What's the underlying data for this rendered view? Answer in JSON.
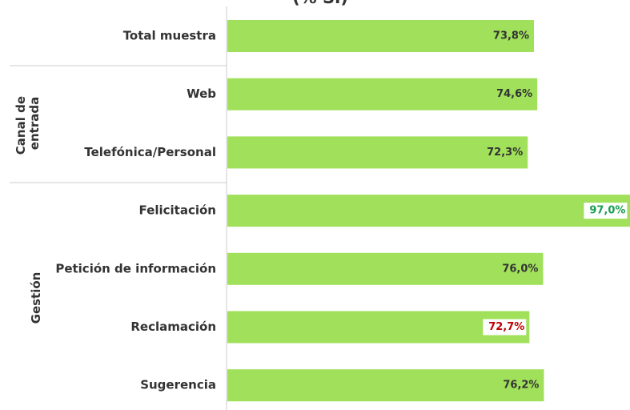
{
  "chart_data": {
    "type": "bar",
    "orientation": "horizontal",
    "title": "(% Sí)",
    "categories": [
      "Total muestra",
      "Web",
      "Telefónica/Personal",
      "Felicitación",
      "Petición de información",
      "Reclamación",
      "Sugerencia"
    ],
    "values": [
      73.8,
      74.6,
      72.3,
      97.0,
      76.0,
      72.7,
      76.2
    ],
    "value_labels": [
      "73,8%",
      "74,6%",
      "72,3%",
      "97,0%",
      "76,0%",
      "72,7%",
      "76,2%"
    ],
    "value_label_colors": [
      "#333333",
      "#333333",
      "#333333",
      "#1a9c50",
      "#333333",
      "#c00000",
      "#333333"
    ],
    "color": "#a0e05a",
    "groups": [
      {
        "label": [
          "Canal de",
          "entrada"
        ]
      },
      {
        "label": [
          "Gestión"
        ]
      }
    ]
  }
}
